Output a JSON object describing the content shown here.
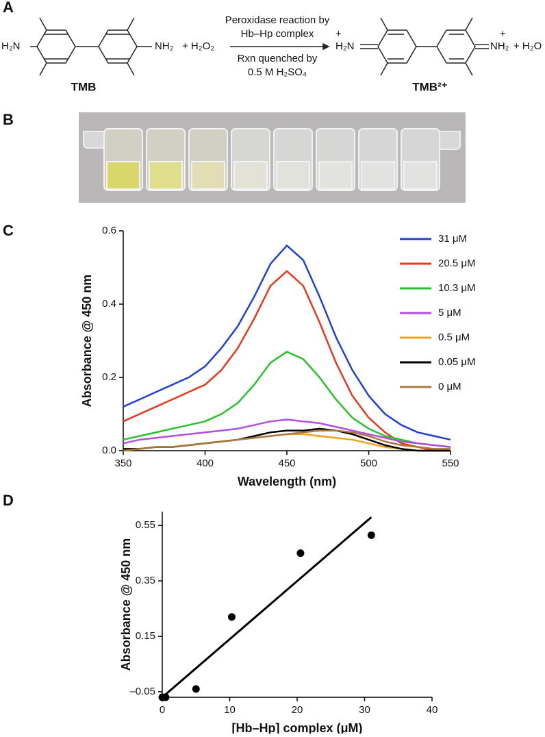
{
  "panels": [
    "A",
    "B",
    "C",
    "D"
  ],
  "reaction": {
    "reactant_left": "H₂N",
    "reactant_right": "NH₂",
    "plus_peroxide": "+ H₂O₂",
    "reactant_name": "TMB",
    "arrow_top_1": "Peroxidase reaction by",
    "arrow_top_2": "Hb–Hp complex",
    "arrow_bottom_1": "Rxn quenched by",
    "arrow_bottom_2": "0.5 M H₂SO₄",
    "product_left_charge": "+",
    "product_left": "H₂N",
    "product_right_charge": "+",
    "product_right": "NH₂",
    "plus_water": "+ H₂O",
    "product_name": "TMB²⁺"
  },
  "chart_data": [
    {
      "type": "line",
      "x_label": "Wavelength (nm)",
      "y_label": "Absorbance @ 450 nm",
      "legend": "right",
      "x": [
        350,
        360,
        370,
        380,
        390,
        400,
        410,
        420,
        430,
        440,
        450,
        460,
        470,
        480,
        490,
        500,
        510,
        520,
        530,
        540,
        550
      ],
      "xlim": [
        350,
        550
      ],
      "xticks": [
        350,
        400,
        450,
        500,
        550
      ],
      "ylim": [
        0,
        0.6
      ],
      "yticks": [
        {
          "value": 0,
          "label": "0.0"
        },
        0.2,
        0.4,
        0.6
      ],
      "series": [
        {
          "name": "31 μM",
          "color": "#1f3fd6",
          "values": [
            0.12,
            0.14,
            0.16,
            0.18,
            0.2,
            0.23,
            0.28,
            0.34,
            0.42,
            0.51,
            0.56,
            0.52,
            0.42,
            0.31,
            0.22,
            0.15,
            0.1,
            0.07,
            0.05,
            0.04,
            0.03
          ]
        },
        {
          "name": "20.5 μM",
          "color": "#e8371c",
          "values": [
            0.08,
            0.1,
            0.12,
            0.14,
            0.16,
            0.18,
            0.22,
            0.28,
            0.36,
            0.45,
            0.49,
            0.45,
            0.35,
            0.24,
            0.15,
            0.09,
            0.05,
            0.02,
            0.01,
            0,
            0
          ]
        },
        {
          "name": "10.3 μM",
          "color": "#27c22a",
          "values": [
            0.03,
            0.04,
            0.05,
            0.06,
            0.07,
            0.08,
            0.1,
            0.13,
            0.18,
            0.24,
            0.27,
            0.25,
            0.2,
            0.14,
            0.09,
            0.06,
            0.04,
            0.03,
            0.02,
            0.015,
            0.01
          ]
        },
        {
          "name": "5 μM",
          "color": "#b54ce0",
          "values": [
            0.02,
            0.03,
            0.035,
            0.04,
            0.045,
            0.05,
            0.055,
            0.06,
            0.07,
            0.08,
            0.085,
            0.08,
            0.075,
            0.065,
            0.055,
            0.045,
            0.035,
            0.025,
            0.02,
            0.015,
            0.01
          ]
        },
        {
          "name": "0.5 μM",
          "color": "#f5a01a",
          "values": [
            0,
            0.005,
            0.01,
            0.01,
            0.015,
            0.02,
            0.025,
            0.03,
            0.035,
            0.04,
            0.045,
            0.045,
            0.04,
            0.035,
            0.03,
            0.02,
            0.01,
            0.005,
            0,
            0,
            0
          ]
        },
        {
          "name": "0.05 μM",
          "color": "#000000",
          "values": [
            0.005,
            0.005,
            0.01,
            0.01,
            0.015,
            0.02,
            0.025,
            0.03,
            0.04,
            0.05,
            0.055,
            0.055,
            0.06,
            0.055,
            0.045,
            0.03,
            0.015,
            0.005,
            0,
            0,
            0
          ]
        },
        {
          "name": "0 μM",
          "color": "#a8783a",
          "values": [
            0,
            0.005,
            0.01,
            0.01,
            0.015,
            0.02,
            0.025,
            0.03,
            0.035,
            0.04,
            0.045,
            0.05,
            0.055,
            0.055,
            0.05,
            0.04,
            0.025,
            0.015,
            0.01,
            0.005,
            0.005
          ]
        }
      ]
    },
    {
      "type": "scatter",
      "x_label": "[Hb–Hp] complex (μM)",
      "y_label": "Absorbance @ 450 nm",
      "xlim": [
        0,
        40
      ],
      "xticks": [
        0,
        10,
        20,
        30,
        40
      ],
      "ylim": [
        -0.07,
        0.6
      ],
      "yticks": [
        {
          "value": -0.05,
          "label": "–0.05"
        },
        0.15,
        0.35,
        0.55
      ],
      "series": [
        {
          "style": "markers",
          "color": "#000000",
          "x": [
            0,
            0.05,
            0.5,
            5,
            10.3,
            20.5,
            31
          ],
          "values": [
            -0.07,
            -0.07,
            -0.07,
            -0.04,
            0.22,
            0.45,
            0.515
          ]
        },
        {
          "style": "line",
          "color": "#000000",
          "x": [
            0,
            31
          ],
          "values": [
            -0.07,
            0.58
          ]
        }
      ]
    }
  ]
}
